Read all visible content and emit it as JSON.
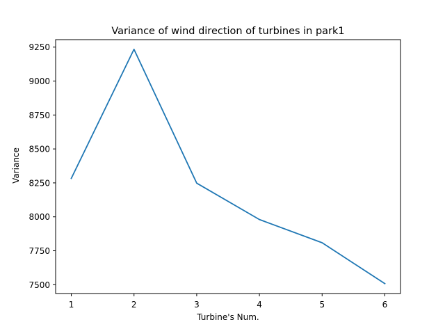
{
  "chart_data": {
    "type": "line",
    "title": "Variance of wind direction of turbines in park1",
    "xlabel": "Turbine's Num.",
    "ylabel": "Variance",
    "x": [
      1,
      2,
      3,
      4,
      5,
      6
    ],
    "xticks": [
      1,
      2,
      3,
      4,
      5,
      6
    ],
    "yticks": [
      7500,
      7750,
      8000,
      8250,
      8500,
      8750,
      9000,
      9250
    ],
    "xlim": [
      0.75,
      6.25
    ],
    "ylim": [
      7435,
      9305
    ],
    "grid": false,
    "series": [
      {
        "values": [
          8283,
          9234,
          8248,
          7980,
          7809,
          7508
        ],
        "color": "#1f77b4"
      }
    ]
  }
}
